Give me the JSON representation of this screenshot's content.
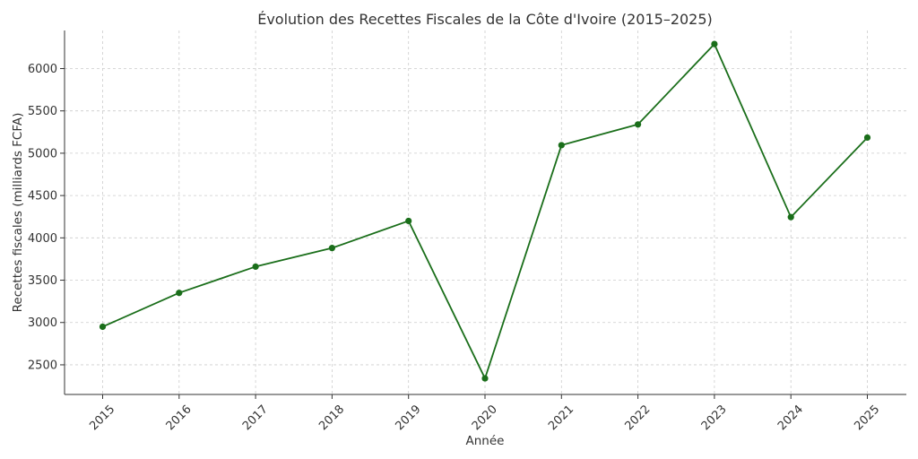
{
  "chart_data": {
    "type": "line",
    "title": "Évolution des Recettes Fiscales de la Côte d'Ivoire (2015–2025)",
    "xlabel": "Année",
    "ylabel": "Recettes fiscales (milliards FCFA)",
    "categories": [
      "2015",
      "2016",
      "2017",
      "2018",
      "2019",
      "2020",
      "2021",
      "2022",
      "2023",
      "2024",
      "2025"
    ],
    "series": [
      {
        "values": [
          2950,
          3350,
          3660,
          3880,
          4200,
          2340,
          5095,
          5340,
          6290,
          4245,
          5185
        ],
        "color": "#1a6e1a"
      }
    ],
    "yticks": [
      2500,
      3000,
      3500,
      4000,
      4500,
      5000,
      5500,
      6000
    ],
    "ylim": [
      2150,
      6450
    ],
    "grid": true,
    "legend": "none"
  }
}
